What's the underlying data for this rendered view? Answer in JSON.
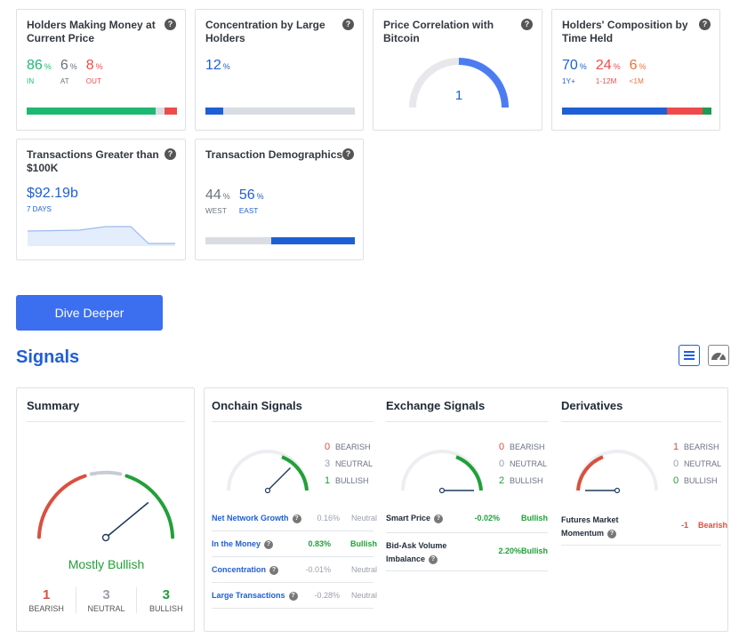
{
  "cards": {
    "money": {
      "title_l1": "Holders Making Money at",
      "title_l2": "Current Price",
      "in_value": "86",
      "at_value": "6",
      "out_value": "8",
      "in_label": "IN",
      "at_label": "AT",
      "out_label": "OUT",
      "pct": "%",
      "bar": [
        0.86,
        0.06,
        0.08
      ]
    },
    "concentration": {
      "title_l1": "Concentration by Large",
      "title_l2": "Holders",
      "value": "12",
      "pct": "%",
      "bar": 0.12
    },
    "correlation": {
      "title_l1": "Price Correlation with",
      "title_l2": "Bitcoin",
      "value": "1",
      "gauge_fraction": 1.0
    },
    "composition": {
      "title_l1": "Holders' Composition by",
      "title_l2": "Time Held",
      "a_value": "70",
      "b_value": "24",
      "c_value": "6",
      "a_label": "1Y+",
      "b_label": "1-12M",
      "c_label": "<1M",
      "pct": "%",
      "bar": [
        0.7,
        0.24,
        0.06
      ]
    },
    "transactions": {
      "title_l1": "Transactions Greater than",
      "title_l2": "$100K",
      "value": "$92.19b",
      "period": "7 DAYS"
    },
    "demographics": {
      "title": "Transaction Demographics",
      "west_value": "44",
      "east_value": "56",
      "west_label": "WEST",
      "east_label": "EAST",
      "pct": "%",
      "bar": [
        0.44,
        0.56
      ]
    }
  },
  "dive_button": "Dive Deeper",
  "signals_title": "Signals",
  "help_icon_text": "?",
  "summary": {
    "title": "Summary",
    "verdict": "Mostly Bullish",
    "bearish": "1",
    "neutral": "3",
    "bullish": "3",
    "bearish_label": "BEARISH",
    "neutral_label": "NEUTRAL",
    "bullish_label": "BULLISH",
    "needle_fraction": 0.78
  },
  "onchain": {
    "title": "Onchain Signals",
    "bearish": "0",
    "neutral": "3",
    "bullish": "1",
    "bearish_label": "BEARISH",
    "neutral_label": "NEUTRAL",
    "bullish_label": "BULLISH",
    "needle_fraction": 0.75,
    "rows": [
      {
        "name": "Net Network Growth",
        "value": "0.16%",
        "result": "Neutral"
      },
      {
        "name": "In the Money",
        "value": "0.83%",
        "result": "Bullish"
      },
      {
        "name": "Concentration",
        "value": "-0.01%",
        "result": "Neutral"
      },
      {
        "name": "Large Transactions",
        "value": "-0.28%",
        "result": "Neutral"
      }
    ]
  },
  "exchange": {
    "title": "Exchange Signals",
    "bearish": "0",
    "neutral": "0",
    "bullish": "2",
    "bearish_label": "BEARISH",
    "neutral_label": "NEUTRAL",
    "bullish_label": "BULLISH",
    "needle_fraction": 1.0,
    "rows": [
      {
        "name": "Smart Price",
        "value": "-0.02%",
        "result": "Bullish"
      },
      {
        "name_l1": "Bid-Ask Volume",
        "name_l2": "Imbalance",
        "value": "2.20%",
        "result": "Bullish"
      }
    ]
  },
  "derivatives": {
    "title": "Derivatives",
    "bearish": "1",
    "neutral": "0",
    "bullish": "0",
    "bearish_label": "BEARISH",
    "neutral_label": "NEUTRAL",
    "bullish_label": "BULLISH",
    "needle_fraction": 0.0,
    "rows": [
      {
        "name_l1": "Futures Market",
        "name_l2": "Momentum",
        "value": "-1",
        "result": "Bearish"
      }
    ]
  },
  "colors": {
    "green": "#1fb872",
    "red": "#ef4b4b",
    "blue": "#1f5fd6",
    "orange": "#f2703a",
    "gauge_red": "#d9503f",
    "gauge_green": "#21a038",
    "gauge_grey": "#c8ccd2"
  }
}
